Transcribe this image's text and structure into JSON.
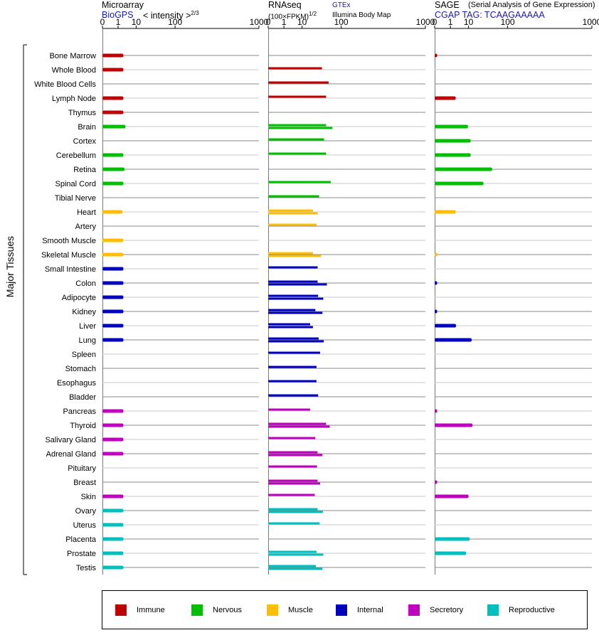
{
  "header": {
    "microarray": {
      "title": "Microarray",
      "source": "BioGPS",
      "unit": "< intensity >",
      "exponent": "2/3"
    },
    "rnaseq": {
      "title": "RNAseq",
      "source": "GTEx",
      "unit": "(100×FPKM)",
      "exponent": "1/2",
      "source2": "Illumina Body Map"
    },
    "sage": {
      "title": "SAGE",
      "subtitle": "(Serial Analysis of Gene Expression)",
      "tag": "CGAP TAG: TCAAGAAAAA"
    }
  },
  "chart_data": {
    "type": "bar",
    "orientation": "horizontal",
    "ylabel": "Major Tissues",
    "x_scale": "power",
    "x_ticks": [
      0,
      1,
      10,
      100,
      1000
    ],
    "xlim": [
      0,
      1000
    ],
    "colors": {
      "Immune": "#bf0000",
      "Nervous": "#00bf00",
      "Muscle": "#ffbf00",
      "Internal": "#0000bf",
      "Secretory": "#bf00bf",
      "Reproductive": "#00bfbf"
    },
    "legend": [
      "Immune",
      "Nervous",
      "Muscle",
      "Internal",
      "Secretory",
      "Reproductive"
    ],
    "tissues": [
      {
        "name": "Bone Marrow",
        "group": "Immune",
        "microarray": 2.4,
        "rnaseq": [],
        "sage": 0.004
      },
      {
        "name": "Whole Blood",
        "group": "Immune",
        "microarray": 2.4,
        "rnaseq": [
          40
        ],
        "sage": null
      },
      {
        "name": "White Blood Cells",
        "group": "Immune",
        "microarray": null,
        "rnaseq": [
          57
        ],
        "sage": null
      },
      {
        "name": "Lymph Node",
        "group": "Immune",
        "microarray": 2.4,
        "rnaseq": [
          50
        ],
        "sage": 2.4
      },
      {
        "name": "Thymus",
        "group": "Immune",
        "microarray": 2.4,
        "rnaseq": [],
        "sage": null
      },
      {
        "name": "Brain",
        "group": "Nervous",
        "microarray": 3.2,
        "rnaseq": [
          50,
          68
        ],
        "sage": 9.5
      },
      {
        "name": "Cortex",
        "group": "Nervous",
        "microarray": null,
        "rnaseq": [
          45
        ],
        "sage": 12
      },
      {
        "name": "Cerebellum",
        "group": "Nervous",
        "microarray": 2.4,
        "rnaseq": [
          50
        ],
        "sage": 12
      },
      {
        "name": "Retina",
        "group": "Nervous",
        "microarray": 2.8,
        "rnaseq": [],
        "sage": 49
      },
      {
        "name": "Spinal Cord",
        "group": "Nervous",
        "microarray": 2.4,
        "rnaseq": [
          63
        ],
        "sage": 30
      },
      {
        "name": "Tibial Nerve",
        "group": "Nervous",
        "microarray": null,
        "rnaseq": [
          34
        ],
        "sage": null
      },
      {
        "name": "Heart",
        "group": "Muscle",
        "microarray": 2.1,
        "rnaseq": [
          23,
          31
        ],
        "sage": 2.4
      },
      {
        "name": "Artery",
        "group": "Muscle",
        "microarray": null,
        "rnaseq": [
          29
        ],
        "sage": null
      },
      {
        "name": "Smooth Muscle",
        "group": "Muscle",
        "microarray": 2.4,
        "rnaseq": [],
        "sage": null
      },
      {
        "name": "Skeletal Muscle",
        "group": "Muscle",
        "microarray": 2.4,
        "rnaseq": [
          23,
          38
        ],
        "sage": 0.004
      },
      {
        "name": "Small Intestine",
        "group": "Internal",
        "microarray": 2.4,
        "rnaseq": [
          31
        ],
        "sage": null
      },
      {
        "name": "Colon",
        "group": "Internal",
        "microarray": 2.4,
        "rnaseq": [
          31,
          52
        ],
        "sage": 0.004
      },
      {
        "name": "Adipocyte",
        "group": "Internal",
        "microarray": 2.4,
        "rnaseq": [
          32,
          43
        ],
        "sage": null
      },
      {
        "name": "Kidney",
        "group": "Internal",
        "microarray": 2.4,
        "rnaseq": [
          27,
          41
        ],
        "sage": 0.004
      },
      {
        "name": "Liver",
        "group": "Internal",
        "microarray": 2.4,
        "rnaseq": [
          19,
          23
        ],
        "sage": 2.5
      },
      {
        "name": "Lung",
        "group": "Internal",
        "microarray": 2.4,
        "rnaseq": [
          33,
          44
        ],
        "sage": 13
      },
      {
        "name": "Spleen",
        "group": "Internal",
        "microarray": null,
        "rnaseq": [
          36
        ],
        "sage": null
      },
      {
        "name": "Stomach",
        "group": "Internal",
        "microarray": null,
        "rnaseq": [
          29
        ],
        "sage": null
      },
      {
        "name": "Esophagus",
        "group": "Internal",
        "microarray": null,
        "rnaseq": [
          29
        ],
        "sage": null
      },
      {
        "name": "Bladder",
        "group": "Internal",
        "microarray": null,
        "rnaseq": [
          32
        ],
        "sage": null
      },
      {
        "name": "Pancreas",
        "group": "Secretory",
        "microarray": 2.4,
        "rnaseq": [
          19
        ],
        "sage": 0.004
      },
      {
        "name": "Thyroid",
        "group": "Secretory",
        "microarray": 2.4,
        "rnaseq": [
          50,
          60
        ],
        "sage": 14
      },
      {
        "name": "Salivary Gland",
        "group": "Secretory",
        "microarray": 2.4,
        "rnaseq": [
          27
        ],
        "sage": null
      },
      {
        "name": "Adrenal Gland",
        "group": "Secretory",
        "microarray": 2.4,
        "rnaseq": [
          31,
          41
        ],
        "sage": null
      },
      {
        "name": "Pituitary",
        "group": "Secretory",
        "microarray": null,
        "rnaseq": [
          30
        ],
        "sage": null
      },
      {
        "name": "Breast",
        "group": "Secretory",
        "microarray": null,
        "rnaseq": [
          31,
          36
        ],
        "sage": 0.004
      },
      {
        "name": "Skin",
        "group": "Secretory",
        "microarray": 2.4,
        "rnaseq": [
          26
        ],
        "sage": 10
      },
      {
        "name": "Ovary",
        "group": "Reproductive",
        "microarray": 2.4,
        "rnaseq": [
          31,
          42
        ],
        "sage": null
      },
      {
        "name": "Uterus",
        "group": "Reproductive",
        "microarray": 2.4,
        "rnaseq": [
          35
        ],
        "sage": null
      },
      {
        "name": "Placenta",
        "group": "Reproductive",
        "microarray": 2.4,
        "rnaseq": [],
        "sage": 11
      },
      {
        "name": "Prostate",
        "group": "Reproductive",
        "microarray": 2.4,
        "rnaseq": [
          29,
          43
        ],
        "sage": 8
      },
      {
        "name": "Testis",
        "group": "Reproductive",
        "microarray": 2.4,
        "rnaseq": [
          28,
          41
        ],
        "sage": null
      }
    ]
  }
}
